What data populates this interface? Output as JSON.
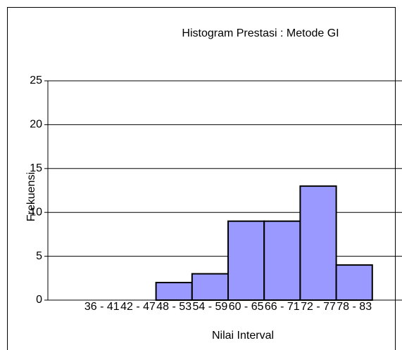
{
  "chart_data": {
    "type": "bar",
    "title": "Histogram Prestasi : Metode GI",
    "x_label": "Nilai Interval",
    "y_label": "Frekuensi",
    "categories": [
      null,
      "36 - 41",
      "42 - 47",
      "48 - 53",
      "54 - 59",
      "60 - 65",
      "66 - 71",
      "72 - 77",
      "78 - 83",
      null
    ],
    "values": [
      null,
      0,
      0,
      2,
      3,
      9,
      9,
      13,
      4,
      null
    ],
    "color": "#9999ff",
    "ylim": [
      0,
      25
    ],
    "yticks": [
      0,
      5,
      10,
      15,
      20,
      25
    ],
    "grid": true
  }
}
